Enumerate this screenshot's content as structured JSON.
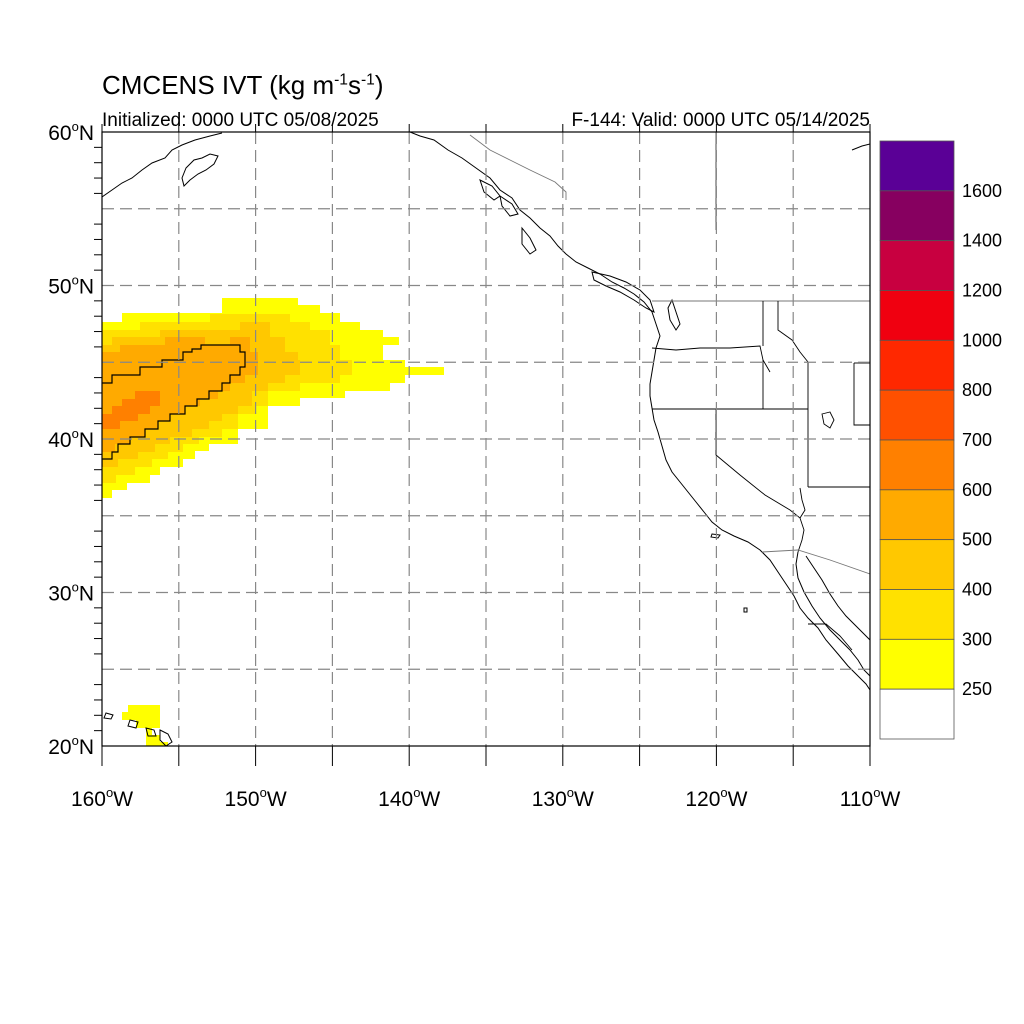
{
  "header": {
    "title_main": "CMCENS IVT (kg m",
    "title_exp1": "-1",
    "title_mid": "s",
    "title_exp2": "-1",
    "title_end": ")",
    "initialized": "Initialized: 0000 UTC 05/08/2025",
    "valid": "F-144: Valid: 0000 UTC 05/14/2025"
  },
  "axes": {
    "lat_min": 20,
    "lat_max": 60,
    "lon_min": -160,
    "lon_max": -110,
    "lat_labels": [
      {
        "value": 60,
        "text": "60",
        "suffix": "N"
      },
      {
        "value": 50,
        "text": "50",
        "suffix": "N"
      },
      {
        "value": 40,
        "text": "40",
        "suffix": "N"
      },
      {
        "value": 30,
        "text": "30",
        "suffix": "N"
      },
      {
        "value": 20,
        "text": "20",
        "suffix": "N"
      }
    ],
    "lon_labels": [
      {
        "value": -160,
        "text": "160",
        "suffix": "W"
      },
      {
        "value": -150,
        "text": "150",
        "suffix": "W"
      },
      {
        "value": -140,
        "text": "140",
        "suffix": "W"
      },
      {
        "value": -130,
        "text": "130",
        "suffix": "W"
      },
      {
        "value": -120,
        "text": "120",
        "suffix": "W"
      },
      {
        "value": -110,
        "text": "110",
        "suffix": "W"
      }
    ],
    "degree_symbol": "o",
    "gridlines": "dashed, every 5 degrees"
  },
  "colorbar": {
    "levels": [
      250,
      300,
      400,
      500,
      600,
      700,
      800,
      1000,
      1200,
      1400,
      1600
    ],
    "labels": [
      "250",
      "300",
      "400",
      "500",
      "600",
      "700",
      "800",
      "1000",
      "1200",
      "1400",
      "1600"
    ],
    "colors": [
      "#ffffff",
      "#ffff00",
      "#ffe100",
      "#ffc800",
      "#ffaa00",
      "#ff8000",
      "#ff5000",
      "#ff2800",
      "#f00010",
      "#c80040",
      "#870060",
      "#5a0096"
    ]
  },
  "ivt_field": {
    "description_units": "kg m-1 s-1",
    "contour_level": 500,
    "colors": {
      "c250": "#ffff00",
      "c300": "#ffe100",
      "c400": "#ffc800",
      "c500": "#ffaa00",
      "c600": "#ff8000"
    }
  }
}
